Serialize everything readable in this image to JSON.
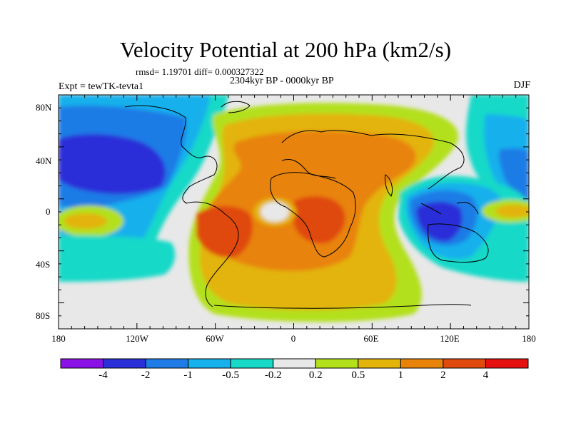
{
  "title": "Velocity Potential at 200 hPa (km2/s)",
  "stats": "rmsd= 1.19701 diff= 0.000327322",
  "period": "2304kyr BP - 0000kyr BP",
  "experiment": "Expt = tewTK-tevta1",
  "season": "DJF",
  "lat_ticks": [
    "80N",
    "40N",
    "0",
    "40S",
    "80S"
  ],
  "lon_ticks": [
    "180",
    "120W",
    "60W",
    "0",
    "60E",
    "120E",
    "180"
  ],
  "colorbar": {
    "labels": [
      "-4",
      "-2",
      "-1",
      "-0.5",
      "-0.2",
      "0.2",
      "0.5",
      "1",
      "2",
      "4"
    ],
    "colors": [
      "#8a12e6",
      "#2a2fd8",
      "#1f7be6",
      "#16b0ec",
      "#19d9c8",
      "#e8e8e8",
      "#b3e01c",
      "#e3b40a",
      "#e8830a",
      "#e04a0d",
      "#e51010"
    ]
  }
}
